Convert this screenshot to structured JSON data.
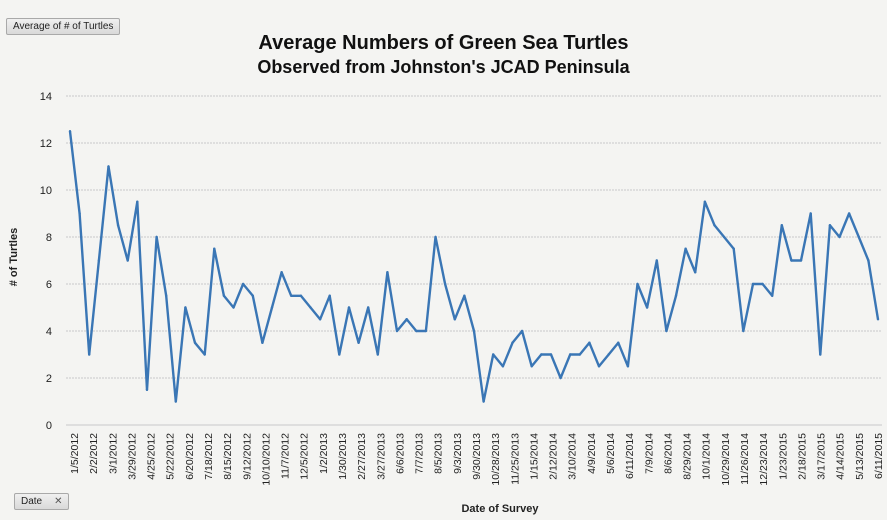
{
  "field_buttons": {
    "value_field": "Average of # of Turtles",
    "axis_field": "Date"
  },
  "chart_data": {
    "type": "line",
    "title": "Average Numbers of Green Sea Turtles",
    "subtitle": "Observed from Johnston's JCAD Peninsula",
    "xlabel": "Date of Survey",
    "ylabel": "# of Turtles",
    "ylim": [
      0,
      14
    ],
    "yticks": [
      0,
      2,
      4,
      6,
      8,
      10,
      12,
      14
    ],
    "grid": true,
    "line_color": "#3a76b5",
    "x_tick_labels": [
      "1/5/2012",
      "2/2/2012",
      "3/1/2012",
      "3/29/2012",
      "4/25/2012",
      "5/22/2012",
      "6/20/2012",
      "7/18/2012",
      "8/15/2012",
      "9/12/2012",
      "10/10/2012",
      "11/7/2012",
      "12/5/2012",
      "1/2/2013",
      "1/30/2013",
      "2/27/2013",
      "3/27/2013",
      "6/6/2013",
      "7/7/2013",
      "8/5/2013",
      "9/3/2013",
      "9/30/2013",
      "10/28/2013",
      "11/25/2013",
      "1/15/2014",
      "2/12/2014",
      "3/10/2014",
      "4/9/2014",
      "5/6/2014",
      "6/11/2014",
      "7/9/2014",
      "8/6/2014",
      "8/29/2014",
      "10/1/2014",
      "10/29/2014",
      "11/26/2014",
      "12/23/2014",
      "1/23/2015",
      "2/18/2015",
      "3/17/2015",
      "4/14/2015",
      "5/13/2015",
      "6/11/2015"
    ],
    "values": [
      12.5,
      9,
      3,
      7,
      11,
      8.5,
      7,
      9.5,
      1.5,
      8,
      5.5,
      1,
      5,
      3.5,
      3,
      7.5,
      5.5,
      5,
      6,
      5.5,
      3.5,
      5,
      6.5,
      5.5,
      5.5,
      5,
      4.5,
      5.5,
      3,
      5,
      3.5,
      5,
      3,
      6.5,
      4,
      4.5,
      4,
      4,
      8,
      6,
      4.5,
      5.5,
      4,
      1,
      3,
      2.5,
      3.5,
      4,
      2.5,
      3,
      3,
      2,
      3,
      3,
      3.5,
      2.5,
      3,
      3.5,
      2.5,
      6,
      5,
      7,
      4,
      5.5,
      7.5,
      6.5,
      9.5,
      8.5,
      8,
      7.5,
      4,
      6,
      6,
      5.5,
      8.5,
      7,
      7,
      9,
      3,
      8.5,
      8,
      9,
      8,
      7,
      4.5
    ]
  }
}
